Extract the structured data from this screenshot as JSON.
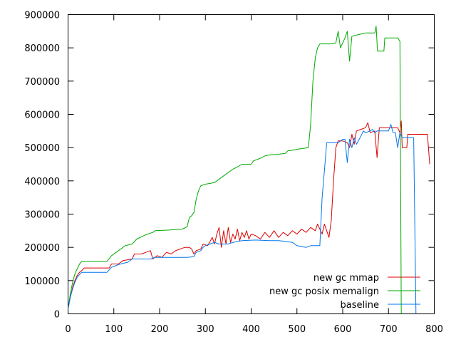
{
  "chart_data": {
    "type": "line",
    "title": "",
    "xlabel": "",
    "ylabel": "",
    "xlim": [
      0,
      800
    ],
    "ylim": [
      0,
      900000
    ],
    "xticks": [
      "0",
      "100",
      "200",
      "300",
      "400",
      "500",
      "600",
      "700",
      "800"
    ],
    "yticks": [
      "0",
      "100000",
      "200000",
      "300000",
      "400000",
      "500000",
      "600000",
      "700000",
      "800000",
      "900000"
    ],
    "grid": false,
    "legend_position": "bottom-right",
    "series": [
      {
        "name": "new gc mmap",
        "color": "#dd0000",
        "points": [
          [
            0,
            15000
          ],
          [
            5,
            50000
          ],
          [
            10,
            80000
          ],
          [
            15,
            100000
          ],
          [
            20,
            115000
          ],
          [
            25,
            125000
          ],
          [
            30,
            130000
          ],
          [
            35,
            138000
          ],
          [
            80,
            138000
          ],
          [
            90,
            138000
          ],
          [
            95,
            150000
          ],
          [
            110,
            150000
          ],
          [
            120,
            160000
          ],
          [
            140,
            165000
          ],
          [
            145,
            180000
          ],
          [
            160,
            180000
          ],
          [
            170,
            185000
          ],
          [
            180,
            190000
          ],
          [
            185,
            165000
          ],
          [
            195,
            175000
          ],
          [
            205,
            170000
          ],
          [
            215,
            185000
          ],
          [
            225,
            180000
          ],
          [
            235,
            190000
          ],
          [
            245,
            195000
          ],
          [
            255,
            200000
          ],
          [
            265,
            200000
          ],
          [
            270,
            195000
          ],
          [
            275,
            180000
          ],
          [
            280,
            190000
          ],
          [
            290,
            195000
          ],
          [
            295,
            210000
          ],
          [
            305,
            205000
          ],
          [
            315,
            230000
          ],
          [
            320,
            210000
          ],
          [
            325,
            240000
          ],
          [
            330,
            260000
          ],
          [
            335,
            200000
          ],
          [
            340,
            250000
          ],
          [
            345,
            210000
          ],
          [
            350,
            260000
          ],
          [
            355,
            215000
          ],
          [
            360,
            240000
          ],
          [
            365,
            225000
          ],
          [
            370,
            255000
          ],
          [
            375,
            220000
          ],
          [
            380,
            245000
          ],
          [
            385,
            230000
          ],
          [
            390,
            250000
          ],
          [
            395,
            225000
          ],
          [
            400,
            240000
          ],
          [
            410,
            235000
          ],
          [
            420,
            225000
          ],
          [
            430,
            245000
          ],
          [
            440,
            230000
          ],
          [
            450,
            250000
          ],
          [
            460,
            230000
          ],
          [
            470,
            245000
          ],
          [
            480,
            235000
          ],
          [
            490,
            250000
          ],
          [
            500,
            240000
          ],
          [
            510,
            255000
          ],
          [
            520,
            245000
          ],
          [
            530,
            260000
          ],
          [
            540,
            250000
          ],
          [
            545,
            270000
          ],
          [
            550,
            255000
          ],
          [
            555,
            240000
          ],
          [
            560,
            270000
          ],
          [
            565,
            250000
          ],
          [
            570,
            230000
          ],
          [
            575,
            280000
          ],
          [
            580,
            400000
          ],
          [
            585,
            500000
          ],
          [
            590,
            520000
          ],
          [
            600,
            520000
          ],
          [
            610,
            515000
          ],
          [
            615,
            500000
          ],
          [
            620,
            540000
          ],
          [
            625,
            510000
          ],
          [
            630,
            550000
          ],
          [
            640,
            555000
          ],
          [
            650,
            560000
          ],
          [
            655,
            575000
          ],
          [
            660,
            545000
          ],
          [
            670,
            550000
          ],
          [
            675,
            470000
          ],
          [
            680,
            560000
          ],
          [
            700,
            560000
          ],
          [
            710,
            560000
          ],
          [
            720,
            560000
          ],
          [
            725,
            545000
          ],
          [
            728,
            580000
          ],
          [
            730,
            500000
          ],
          [
            740,
            500000
          ],
          [
            742,
            540000
          ],
          [
            760,
            540000
          ],
          [
            780,
            540000
          ],
          [
            785,
            540000
          ],
          [
            790,
            450000
          ]
        ]
      },
      {
        "name": "new gc posix memalign",
        "color": "#00aa00",
        "points": [
          [
            0,
            15000
          ],
          [
            5,
            60000
          ],
          [
            10,
            95000
          ],
          [
            15,
            120000
          ],
          [
            20,
            135000
          ],
          [
            25,
            150000
          ],
          [
            30,
            158000
          ],
          [
            80,
            158000
          ],
          [
            85,
            158000
          ],
          [
            95,
            175000
          ],
          [
            105,
            185000
          ],
          [
            115,
            195000
          ],
          [
            125,
            205000
          ],
          [
            140,
            210000
          ],
          [
            150,
            225000
          ],
          [
            170,
            238000
          ],
          [
            185,
            245000
          ],
          [
            190,
            250000
          ],
          [
            220,
            252000
          ],
          [
            250,
            255000
          ],
          [
            260,
            262000
          ],
          [
            265,
            290000
          ],
          [
            270,
            295000
          ],
          [
            275,
            305000
          ],
          [
            280,
            345000
          ],
          [
            285,
            370000
          ],
          [
            290,
            385000
          ],
          [
            300,
            390000
          ],
          [
            320,
            395000
          ],
          [
            340,
            415000
          ],
          [
            360,
            435000
          ],
          [
            370,
            442000
          ],
          [
            380,
            450000
          ],
          [
            400,
            450000
          ],
          [
            405,
            460000
          ],
          [
            420,
            468000
          ],
          [
            430,
            475000
          ],
          [
            440,
            478000
          ],
          [
            460,
            480000
          ],
          [
            475,
            483000
          ],
          [
            480,
            490000
          ],
          [
            490,
            492000
          ],
          [
            500,
            495000
          ],
          [
            510,
            497000
          ],
          [
            525,
            500000
          ],
          [
            530,
            570000
          ],
          [
            535,
            700000
          ],
          [
            540,
            770000
          ],
          [
            545,
            800000
          ],
          [
            550,
            812000
          ],
          [
            575,
            812000
          ],
          [
            585,
            815000
          ],
          [
            590,
            850000
          ],
          [
            595,
            800000
          ],
          [
            600,
            815000
          ],
          [
            605,
            830000
          ],
          [
            610,
            850000
          ],
          [
            615,
            760000
          ],
          [
            620,
            835000
          ],
          [
            635,
            840000
          ],
          [
            650,
            845000
          ],
          [
            670,
            845000
          ],
          [
            673,
            865000
          ],
          [
            676,
            790000
          ],
          [
            690,
            790000
          ],
          [
            692,
            830000
          ],
          [
            720,
            830000
          ],
          [
            725,
            820000
          ],
          [
            728,
            0
          ]
        ]
      },
      {
        "name": "baseline",
        "color": "#0077ee",
        "points": [
          [
            0,
            15000
          ],
          [
            5,
            50000
          ],
          [
            10,
            75000
          ],
          [
            15,
            95000
          ],
          [
            20,
            110000
          ],
          [
            25,
            118000
          ],
          [
            30,
            125000
          ],
          [
            60,
            125000
          ],
          [
            85,
            125000
          ],
          [
            95,
            140000
          ],
          [
            110,
            148000
          ],
          [
            120,
            152000
          ],
          [
            130,
            155000
          ],
          [
            140,
            165000
          ],
          [
            180,
            165000
          ],
          [
            190,
            170000
          ],
          [
            220,
            170000
          ],
          [
            260,
            170000
          ],
          [
            275,
            172000
          ],
          [
            280,
            185000
          ],
          [
            290,
            190000
          ],
          [
            295,
            200000
          ],
          [
            300,
            205000
          ],
          [
            310,
            210000
          ],
          [
            320,
            215000
          ],
          [
            330,
            210000
          ],
          [
            350,
            210000
          ],
          [
            360,
            215000
          ],
          [
            380,
            220000
          ],
          [
            410,
            222000
          ],
          [
            440,
            220000
          ],
          [
            460,
            220000
          ],
          [
            475,
            218000
          ],
          [
            490,
            215000
          ],
          [
            500,
            205000
          ],
          [
            520,
            200000
          ],
          [
            530,
            205000
          ],
          [
            540,
            205000
          ],
          [
            550,
            205000
          ],
          [
            555,
            350000
          ],
          [
            560,
            430000
          ],
          [
            565,
            515000
          ],
          [
            570,
            515000
          ],
          [
            580,
            515000
          ],
          [
            590,
            515000
          ],
          [
            600,
            525000
          ],
          [
            605,
            525000
          ],
          [
            610,
            455000
          ],
          [
            615,
            525000
          ],
          [
            620,
            500000
          ],
          [
            625,
            530000
          ],
          [
            630,
            510000
          ],
          [
            640,
            535000
          ],
          [
            645,
            550000
          ],
          [
            650,
            545000
          ],
          [
            660,
            550000
          ],
          [
            665,
            555000
          ],
          [
            670,
            545000
          ],
          [
            675,
            550000
          ],
          [
            690,
            550000
          ],
          [
            700,
            550000
          ],
          [
            705,
            570000
          ],
          [
            710,
            545000
          ],
          [
            715,
            545000
          ],
          [
            720,
            500000
          ],
          [
            725,
            545000
          ],
          [
            730,
            530000
          ],
          [
            745,
            530000
          ],
          [
            755,
            530000
          ],
          [
            760,
            0
          ]
        ]
      }
    ]
  }
}
